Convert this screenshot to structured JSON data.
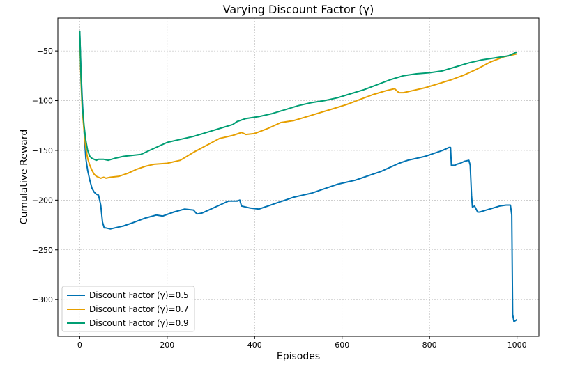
{
  "chart_data": {
    "type": "line",
    "title": "Varying Discount Factor (γ)",
    "xlabel": "Episodes",
    "ylabel": "Cumulative Reward",
    "xlim": [
      -50,
      1050
    ],
    "ylim": [
      -337,
      -17
    ],
    "xticks": [
      0,
      200,
      400,
      600,
      800,
      1000
    ],
    "yticks": [
      -50,
      -100,
      -150,
      -200,
      -250,
      -300
    ],
    "grid": true,
    "legend": "lower-left",
    "series": [
      {
        "name": "Discount Factor (γ)=0.5",
        "color": "#0072b2",
        "x": [
          0,
          3,
          6,
          10,
          14,
          18,
          23,
          28,
          33,
          38,
          43,
          48,
          52,
          56,
          60,
          70,
          80,
          100,
          120,
          150,
          175,
          190,
          215,
          240,
          260,
          268,
          280,
          300,
          320,
          340,
          360,
          366,
          370,
          390,
          410,
          430,
          450,
          470,
          490,
          510,
          530,
          550,
          570,
          590,
          610,
          630,
          650,
          670,
          690,
          710,
          730,
          750,
          770,
          790,
          810,
          830,
          845,
          848,
          850,
          858,
          862,
          870,
          880,
          890,
          893,
          896,
          898,
          903,
          910,
          915,
          930,
          945,
          960,
          975,
          985,
          988,
          990,
          993,
          997,
          1000
        ],
        "values": [
          -30,
          -70,
          -100,
          -130,
          -158,
          -170,
          -180,
          -188,
          -192,
          -194,
          -195,
          -205,
          -222,
          -228,
          -228,
          -229,
          -228,
          -226,
          -223,
          -218,
          -215,
          -216,
          -212,
          -209,
          -210,
          -214,
          -213,
          -209,
          -205,
          -201,
          -201,
          -200,
          -206,
          -208,
          -209,
          -206,
          -203,
          -200,
          -197,
          -195,
          -193,
          -190,
          -187,
          -184,
          -182,
          -180,
          -177,
          -174,
          -171,
          -167,
          -163,
          -160,
          -158,
          -156,
          -153,
          -150,
          -147,
          -147,
          -165,
          -165,
          -164,
          -163,
          -161,
          -160,
          -165,
          -195,
          -207,
          -206,
          -212,
          -212,
          -210,
          -208,
          -206,
          -205,
          -205,
          -215,
          -315,
          -322,
          -321,
          -320
        ]
      },
      {
        "name": "Discount Factor (γ)=0.7",
        "color": "#e69f00",
        "x": [
          0,
          3,
          6,
          10,
          14,
          18,
          23,
          28,
          33,
          38,
          43,
          48,
          55,
          60,
          70,
          90,
          110,
          130,
          150,
          170,
          200,
          230,
          260,
          290,
          320,
          350,
          370,
          380,
          400,
          430,
          460,
          490,
          520,
          550,
          580,
          610,
          640,
          670,
          700,
          720,
          730,
          740,
          760,
          790,
          820,
          850,
          880,
          910,
          940,
          970,
          1000
        ],
        "values": [
          -35,
          -80,
          -110,
          -130,
          -148,
          -158,
          -165,
          -170,
          -174,
          -176,
          -177,
          -178,
          -177,
          -178,
          -177,
          -176,
          -173,
          -169,
          -166,
          -164,
          -163,
          -160,
          -152,
          -145,
          -138,
          -135,
          -132,
          -134,
          -133,
          -128,
          -122,
          -120,
          -116,
          -112,
          -108,
          -104,
          -99,
          -94,
          -90,
          -88,
          -92,
          -92,
          -90,
          -87,
          -83,
          -79,
          -74,
          -68,
          -61,
          -56,
          -53
        ]
      },
      {
        "name": "Discount Factor (γ)=0.9",
        "color": "#009e73",
        "x": [
          0,
          3,
          6,
          10,
          14,
          18,
          23,
          28,
          33,
          38,
          43,
          48,
          55,
          65,
          80,
          100,
          120,
          140,
          160,
          180,
          200,
          230,
          260,
          290,
          320,
          350,
          360,
          380,
          410,
          440,
          470,
          500,
          530,
          560,
          590,
          620,
          650,
          680,
          710,
          740,
          770,
          800,
          830,
          860,
          890,
          920,
          950,
          980,
          1000
        ],
        "values": [
          -30,
          -75,
          -105,
          -125,
          -140,
          -150,
          -156,
          -158,
          -159,
          -160,
          -159,
          -159,
          -159,
          -160,
          -158,
          -156,
          -155,
          -154,
          -150,
          -146,
          -142,
          -139,
          -136,
          -132,
          -128,
          -124,
          -121,
          -118,
          -116,
          -113,
          -109,
          -105,
          -102,
          -100,
          -97,
          -93,
          -89,
          -84,
          -79,
          -75,
          -73,
          -72,
          -70,
          -66,
          -62,
          -59,
          -57,
          -55,
          -51
        ]
      }
    ]
  }
}
